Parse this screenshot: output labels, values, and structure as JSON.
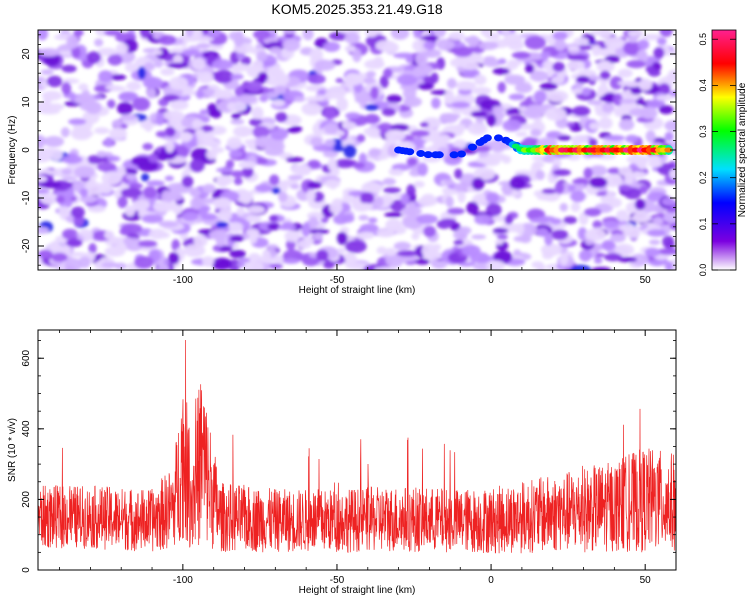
{
  "title": "KOM5.2025.353.21.49.G18",
  "chart_data": [
    {
      "type": "heatmap",
      "title": "KOM5.2025.353.21.49.G18",
      "xlabel": "Height of straight line (km)",
      "ylabel": "Frequency (Hz)",
      "xlim": [
        -147,
        60
      ],
      "ylim": [
        -25,
        25
      ],
      "xticks": [
        -100,
        -50,
        0,
        50
      ],
      "xtick_labels": [
        "-100",
        "-50",
        "0",
        "50"
      ],
      "yticks": [
        -20,
        -10,
        0,
        10,
        20
      ],
      "ytick_labels": [
        "-20",
        "-10",
        "0",
        "10",
        "20"
      ],
      "colorbar": {
        "label": "Normalized spectral amplitude",
        "range": [
          0,
          0.52
        ],
        "ticks": [
          0,
          0.1,
          0.2,
          0.3,
          0.4,
          0.5
        ],
        "tick_labels": [
          "0.0",
          "0.1",
          "0.2",
          "0.3",
          "0.4",
          "0.5"
        ],
        "colors": [
          "#ffffff",
          "#7b00e0",
          "#0000ff",
          "#00e0ff",
          "#00ff00",
          "#ffff00",
          "#ff0000",
          "#ff2090"
        ]
      },
      "signal_trace": {
        "description": "bright track near 0 Hz from about -30 km to 58 km",
        "x": [
          -30,
          -20,
          -10,
          -5,
          0,
          5,
          10,
          20,
          30,
          40,
          50,
          58
        ],
        "freq": [
          0,
          -1,
          -1,
          1,
          3,
          2,
          0,
          0,
          0,
          0,
          0,
          0
        ],
        "amplitude": [
          0.12,
          0.08,
          0.15,
          0.14,
          0.15,
          0.2,
          0.3,
          0.45,
          0.42,
          0.45,
          0.48,
          0.35
        ]
      }
    },
    {
      "type": "line",
      "xlabel": "Height of straight line (km)",
      "ylabel": "SNR (10 * v/v)",
      "xlim": [
        -147,
        60
      ],
      "ylim": [
        0,
        680
      ],
      "xticks": [
        -100,
        -50,
        0,
        50
      ],
      "xtick_labels": [
        "-100",
        "-50",
        "0",
        "50"
      ],
      "yticks": [
        0,
        200,
        400,
        600
      ],
      "ytick_labels": [
        "0",
        "200",
        "400",
        "600"
      ],
      "color": "#ee2222",
      "series": [
        {
          "name": "SNR",
          "envelope_x": [
            -147,
            -130,
            -110,
            -103,
            -100,
            -97,
            -94,
            -92,
            -88,
            -70,
            -50,
            -30,
            -10,
            0,
            20,
            40,
            50,
            60
          ],
          "envelope_mean": [
            150,
            150,
            140,
            180,
            330,
            200,
            330,
            260,
            150,
            140,
            140,
            145,
            140,
            140,
            160,
            180,
            200,
            190
          ],
          "envelope_spread": [
            90,
            90,
            90,
            120,
            240,
            150,
            260,
            200,
            100,
            90,
            90,
            95,
            90,
            95,
            110,
            130,
            150,
            140
          ]
        }
      ]
    }
  ]
}
